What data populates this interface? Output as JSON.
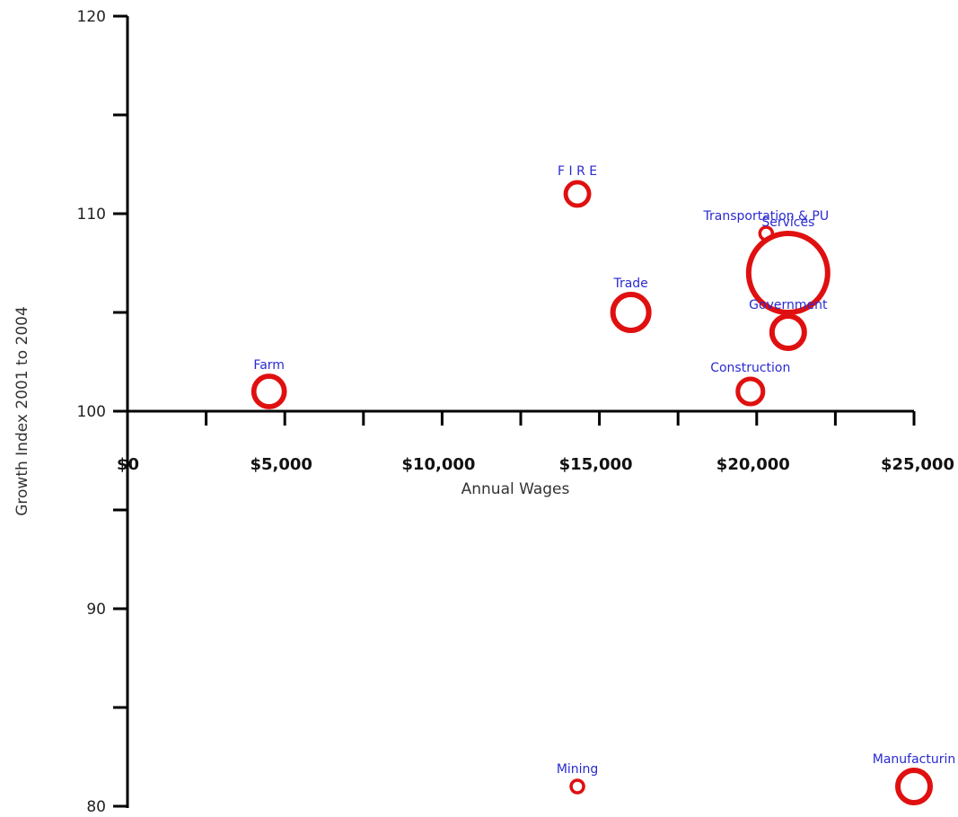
{
  "chart_data": {
    "type": "scatter",
    "title": "",
    "xlabel": "Annual Wages",
    "ylabel": "Growth Index 2001 to 2004",
    "xlim": [
      0,
      25000
    ],
    "ylim": [
      80,
      120
    ],
    "x_ticks": [
      0,
      5000,
      10000,
      15000,
      20000,
      25000
    ],
    "x_tick_labels": [
      "$0",
      "$5,000",
      "$10,000",
      "$15,000",
      "$20,000",
      "$25,000"
    ],
    "y_ticks": [
      80,
      90,
      100,
      110,
      120
    ],
    "y_tick_labels": [
      "80",
      "90",
      "100",
      "110",
      "120"
    ],
    "x_axis_crosses_y_at": 100,
    "grid": false,
    "colors": {
      "bubble": "#e01010",
      "label": "#2a2ad0",
      "axis": "#000000"
    },
    "points": [
      {
        "name": "Farm",
        "x": 4500,
        "y": 101,
        "size": 17
      },
      {
        "name": "F I R E",
        "x": 14300,
        "y": 111,
        "size": 13
      },
      {
        "name": "Trade",
        "x": 16000,
        "y": 105,
        "size": 20
      },
      {
        "name": "Transportation & PU",
        "x": 20300,
        "y": 109,
        "size": 7
      },
      {
        "name": "Services",
        "x": 21000,
        "y": 107,
        "size": 44
      },
      {
        "name": "Government",
        "x": 21000,
        "y": 104,
        "size": 18
      },
      {
        "name": "Construction",
        "x": 19800,
        "y": 101,
        "size": 14
      },
      {
        "name": "Mining",
        "x": 14300,
        "y": 81,
        "size": 7
      },
      {
        "name": "Manufacturin",
        "x": 25000,
        "y": 81,
        "size": 18
      }
    ]
  }
}
